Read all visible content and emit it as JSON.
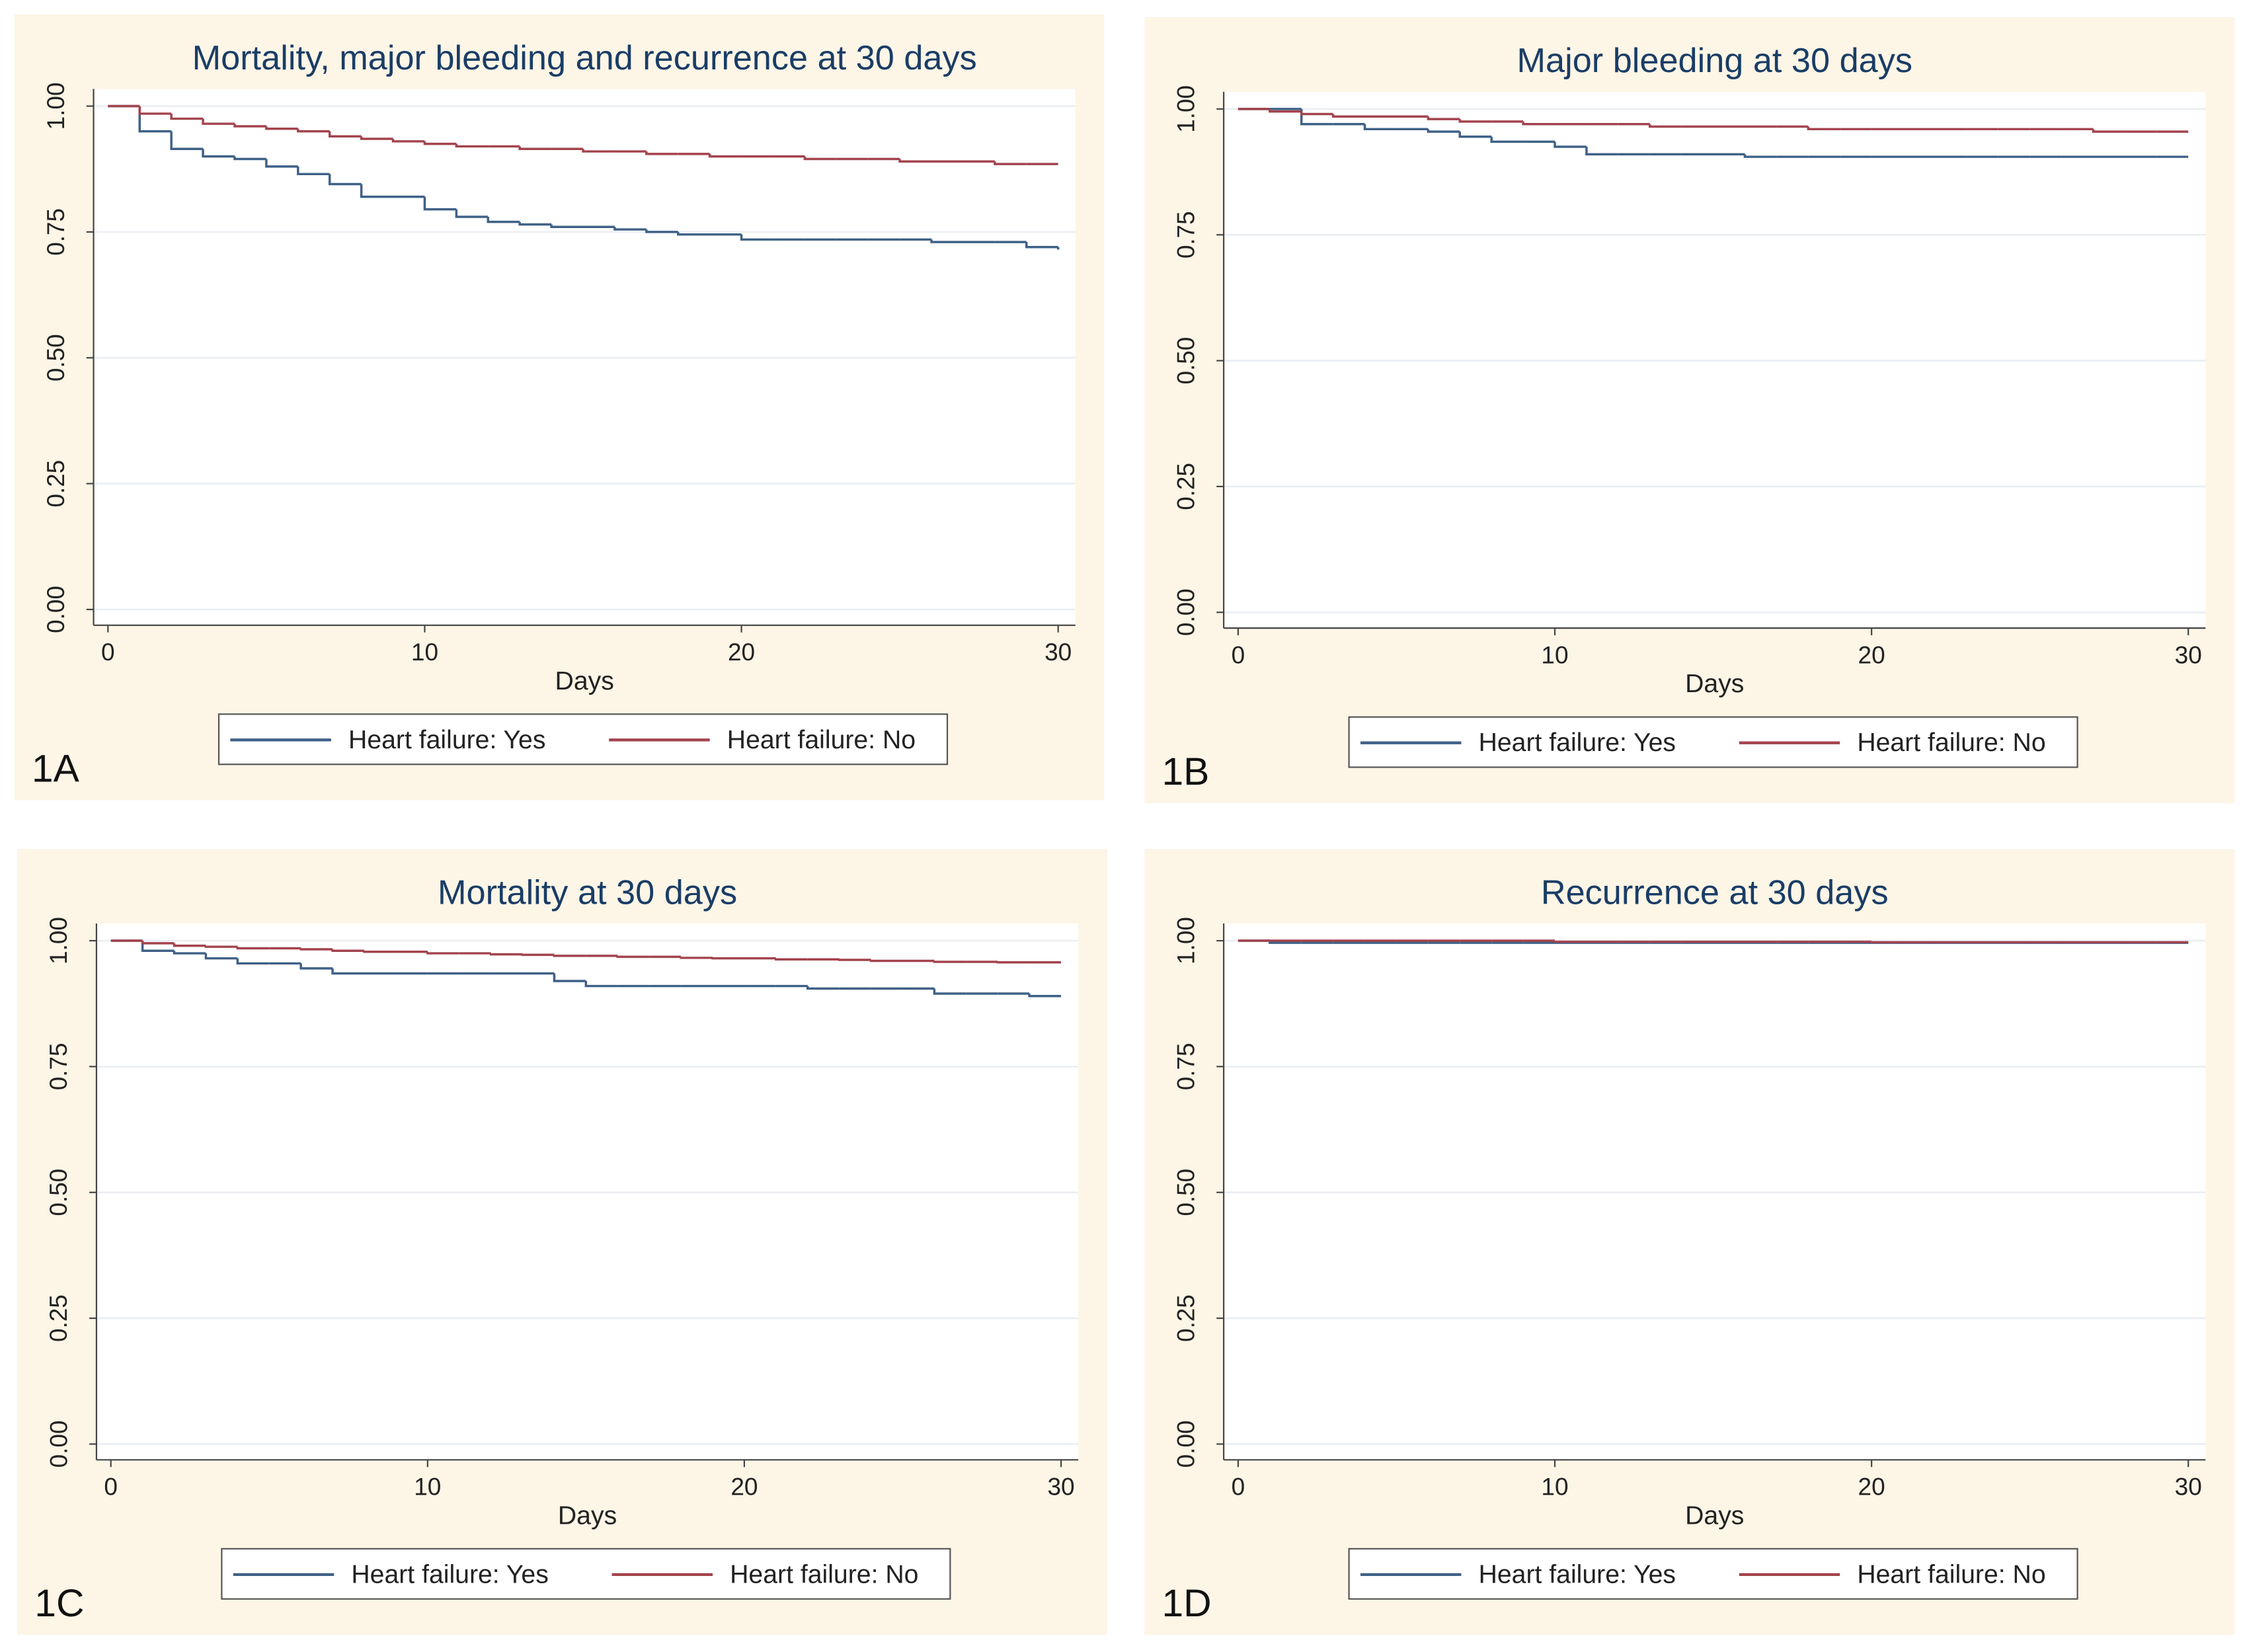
{
  "chart_data": [
    {
      "type": "step",
      "panel_label": "1A",
      "title": "Mortality, major bleeding and recurrence at 30 days",
      "xlabel": "Days",
      "x": [
        0,
        1,
        2,
        3,
        4,
        5,
        6,
        7,
        8,
        9,
        10,
        11,
        12,
        13,
        14,
        15,
        16,
        17,
        18,
        19,
        20,
        21,
        22,
        23,
        24,
        25,
        26,
        27,
        28,
        29,
        30
      ],
      "series": [
        {
          "name": "Heart failure: Yes",
          "color": "#3f6187",
          "values": [
            1,
            0.95,
            0.915,
            0.9,
            0.895,
            0.88,
            0.865,
            0.845,
            0.82,
            0.82,
            0.795,
            0.78,
            0.77,
            0.765,
            0.76,
            0.76,
            0.755,
            0.75,
            0.745,
            0.745,
            0.735,
            0.735,
            0.735,
            0.735,
            0.735,
            0.735,
            0.73,
            0.73,
            0.73,
            0.72,
            0.715
          ]
        },
        {
          "name": "Heart failure: No",
          "color": "#a3434d",
          "values": [
            1,
            0.985,
            0.975,
            0.965,
            0.96,
            0.955,
            0.95,
            0.94,
            0.935,
            0.93,
            0.925,
            0.92,
            0.92,
            0.915,
            0.915,
            0.91,
            0.91,
            0.905,
            0.905,
            0.9,
            0.9,
            0.9,
            0.895,
            0.895,
            0.895,
            0.89,
            0.89,
            0.89,
            0.885,
            0.885,
            0.885
          ]
        }
      ],
      "xlim": [
        0,
        30
      ],
      "ylim": [
        0,
        1
      ],
      "xticks": [
        0,
        10,
        20,
        30
      ],
      "yticks": [
        {
          "value": 0,
          "label": "0.00"
        },
        {
          "value": 0.25,
          "label": "0.25"
        },
        {
          "value": 0.5,
          "label": "0.50"
        },
        {
          "value": 0.75,
          "label": "0.75"
        },
        {
          "value": 1,
          "label": "1.00"
        }
      ],
      "grid": true
    },
    {
      "type": "step",
      "panel_label": "1B",
      "title": "Major bleeding at 30 days",
      "xlabel": "Days",
      "x": [
        0,
        1,
        2,
        3,
        4,
        5,
        6,
        7,
        8,
        9,
        10,
        11,
        12,
        13,
        14,
        15,
        16,
        17,
        18,
        19,
        20,
        21,
        22,
        23,
        24,
        25,
        26,
        27,
        28,
        29,
        30
      ],
      "series": [
        {
          "name": "Heart failure: Yes",
          "color": "#3f6187",
          "values": [
            1,
            1,
            0.97,
            0.97,
            0.96,
            0.96,
            0.955,
            0.945,
            0.935,
            0.935,
            0.925,
            0.91,
            0.91,
            0.91,
            0.91,
            0.91,
            0.905,
            0.905,
            0.905,
            0.905,
            0.905,
            0.905,
            0.905,
            0.905,
            0.905,
            0.905,
            0.905,
            0.905,
            0.905,
            0.905,
            0.905
          ]
        },
        {
          "name": "Heart failure: No",
          "color": "#a3434d",
          "values": [
            1,
            0.995,
            0.99,
            0.985,
            0.985,
            0.985,
            0.98,
            0.975,
            0.975,
            0.97,
            0.97,
            0.97,
            0.97,
            0.965,
            0.965,
            0.965,
            0.965,
            0.965,
            0.96,
            0.96,
            0.96,
            0.96,
            0.96,
            0.96,
            0.96,
            0.96,
            0.96,
            0.955,
            0.955,
            0.955,
            0.955
          ]
        }
      ],
      "xlim": [
        0,
        30
      ],
      "ylim": [
        0,
        1
      ],
      "xticks": [
        0,
        10,
        20,
        30
      ],
      "yticks": [
        {
          "value": 0,
          "label": "0.00"
        },
        {
          "value": 0.25,
          "label": "0.25"
        },
        {
          "value": 0.5,
          "label": "0.50"
        },
        {
          "value": 0.75,
          "label": "0.75"
        },
        {
          "value": 1,
          "label": "1.00"
        }
      ],
      "grid": true
    },
    {
      "type": "step",
      "panel_label": "1C",
      "title": "Mortality at 30 days",
      "xlabel": "Days",
      "x": [
        0,
        1,
        2,
        3,
        4,
        5,
        6,
        7,
        8,
        9,
        10,
        11,
        12,
        13,
        14,
        15,
        16,
        17,
        18,
        19,
        20,
        21,
        22,
        23,
        24,
        25,
        26,
        27,
        28,
        29,
        30
      ],
      "series": [
        {
          "name": "Heart failure: Yes",
          "color": "#3f6187",
          "values": [
            1,
            0.98,
            0.975,
            0.965,
            0.955,
            0.955,
            0.945,
            0.935,
            0.935,
            0.935,
            0.935,
            0.935,
            0.935,
            0.935,
            0.92,
            0.91,
            0.91,
            0.91,
            0.91,
            0.91,
            0.91,
            0.91,
            0.905,
            0.905,
            0.905,
            0.905,
            0.895,
            0.895,
            0.895,
            0.89,
            0.89
          ]
        },
        {
          "name": "Heart failure: No",
          "color": "#a3434d",
          "values": [
            1,
            0.995,
            0.99,
            0.988,
            0.985,
            0.985,
            0.983,
            0.98,
            0.978,
            0.978,
            0.975,
            0.975,
            0.973,
            0.972,
            0.97,
            0.97,
            0.968,
            0.968,
            0.966,
            0.965,
            0.965,
            0.963,
            0.963,
            0.962,
            0.96,
            0.96,
            0.958,
            0.958,
            0.957,
            0.957,
            0.957
          ]
        }
      ],
      "xlim": [
        0,
        30
      ],
      "ylim": [
        0,
        1
      ],
      "xticks": [
        0,
        10,
        20,
        30
      ],
      "yticks": [
        {
          "value": 0,
          "label": "0.00"
        },
        {
          "value": 0.25,
          "label": "0.25"
        },
        {
          "value": 0.5,
          "label": "0.50"
        },
        {
          "value": 0.75,
          "label": "0.75"
        },
        {
          "value": 1,
          "label": "1.00"
        }
      ],
      "grid": true
    },
    {
      "type": "step",
      "panel_label": "1D",
      "title": "Recurrence at 30 days",
      "xlabel": "Days",
      "x": [
        0,
        1,
        2,
        3,
        4,
        5,
        6,
        7,
        8,
        9,
        10,
        11,
        12,
        13,
        14,
        15,
        16,
        17,
        18,
        19,
        20,
        21,
        22,
        23,
        24,
        25,
        26,
        27,
        28,
        29,
        30
      ],
      "series": [
        {
          "name": "Heart failure: Yes",
          "color": "#3f6187",
          "values": [
            1,
            0.996,
            0.996,
            0.996,
            0.996,
            0.996,
            0.996,
            0.996,
            0.996,
            0.996,
            0.996,
            0.996,
            0.996,
            0.996,
            0.996,
            0.996,
            0.996,
            0.996,
            0.996,
            0.996,
            0.996,
            0.996,
            0.996,
            0.996,
            0.996,
            0.996,
            0.996,
            0.996,
            0.996,
            0.996,
            0.996
          ]
        },
        {
          "name": "Heart failure: No",
          "color": "#a3434d",
          "values": [
            1,
            1,
            1,
            1,
            1,
            1,
            1,
            1,
            1,
            1,
            0.998,
            0.998,
            0.998,
            0.998,
            0.998,
            0.998,
            0.998,
            0.998,
            0.998,
            0.998,
            0.997,
            0.997,
            0.997,
            0.997,
            0.997,
            0.997,
            0.997,
            0.997,
            0.997,
            0.997,
            0.997
          ]
        }
      ],
      "xlim": [
        0,
        30
      ],
      "ylim": [
        0,
        1
      ],
      "xticks": [
        0,
        10,
        20,
        30
      ],
      "yticks": [
        {
          "value": 0,
          "label": "0.00"
        },
        {
          "value": 0.25,
          "label": "0.25"
        },
        {
          "value": 0.5,
          "label": "0.50"
        },
        {
          "value": 0.75,
          "label": "0.75"
        },
        {
          "value": 1,
          "label": "1.00"
        }
      ],
      "grid": true
    }
  ]
}
